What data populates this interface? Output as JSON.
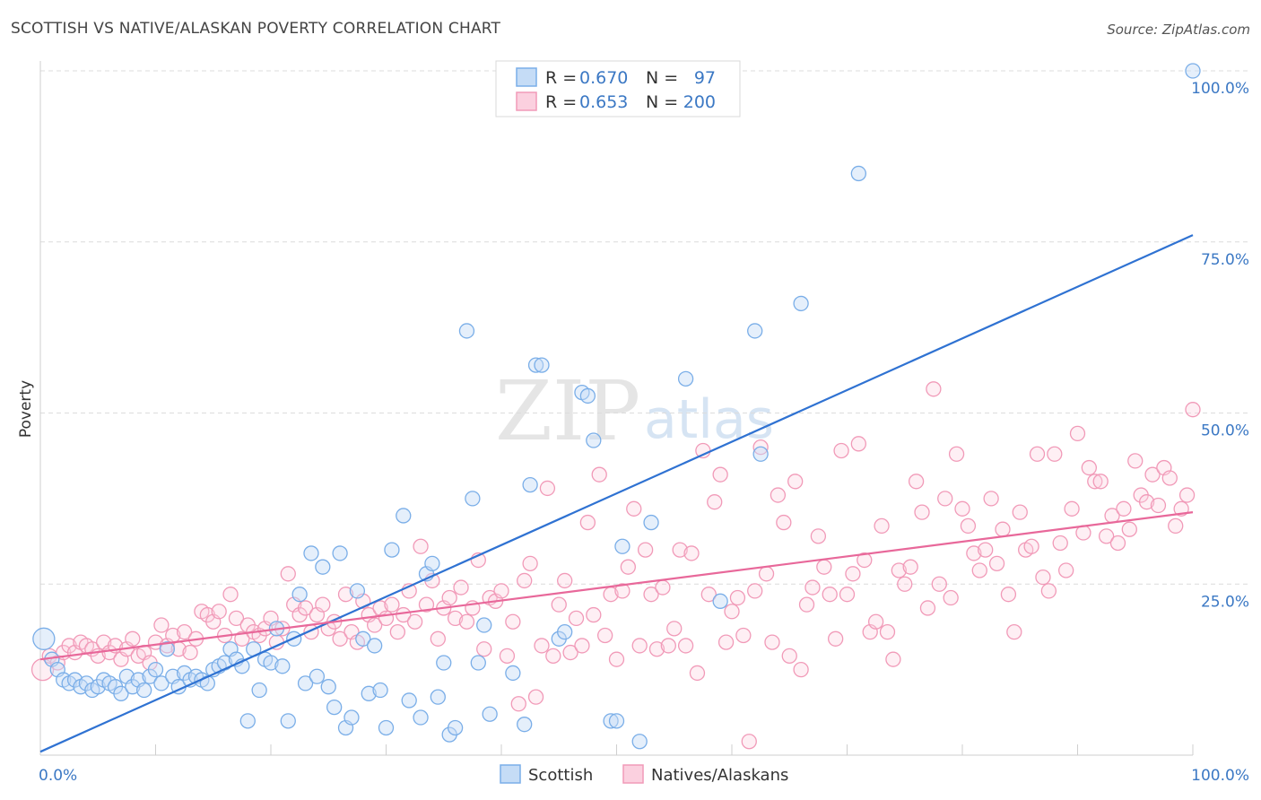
{
  "header": {
    "title": "SCOTTISH VS NATIVE/ALASKAN POVERTY CORRELATION CHART",
    "source": "Source: ZipAtlas.com"
  },
  "watermark": {
    "zip": "ZIP",
    "atlas": "atlas"
  },
  "legend": {
    "rows": [
      {
        "r_label": "R = ",
        "r_value": "0.670",
        "n_label": "N = ",
        "n_value": "97",
        "color": "#7aaee8"
      },
      {
        "r_label": "R = ",
        "r_value": "0.653",
        "n_label": "N = ",
        "n_value": "200",
        "color": "#f19ab8"
      }
    ]
  },
  "bottom_legend": [
    {
      "label": "Scottish",
      "color": "#7aaee8"
    },
    {
      "label": "Natives/Alaskans",
      "color": "#f19ab8"
    }
  ],
  "chart_data": {
    "type": "scatter",
    "title": "SCOTTISH VS NATIVE/ALASKAN POVERTY CORRELATION CHART",
    "xlabel": "",
    "ylabel": "Poverty",
    "xlim": [
      0,
      100
    ],
    "ylim": [
      0,
      100
    ],
    "x_tick_labels": [
      "0.0%",
      "100.0%"
    ],
    "y_tick_labels": [
      "25.0%",
      "50.0%",
      "75.0%",
      "100.0%"
    ],
    "y_ticks": [
      25,
      50,
      75,
      100
    ],
    "grid": true,
    "series": [
      {
        "name": "Scottish",
        "color": "#7aaee8",
        "line_color": "#2f72d2",
        "trend": {
          "x": [
            0,
            100
          ],
          "y": [
            0.5,
            76
          ]
        },
        "points": [
          [
            0.3,
            17.0
          ],
          [
            1.0,
            14.0
          ],
          [
            1.5,
            12.5
          ],
          [
            2.0,
            11.0
          ],
          [
            2.5,
            10.5
          ],
          [
            3.0,
            11.0
          ],
          [
            3.5,
            10.0
          ],
          [
            4.0,
            10.5
          ],
          [
            4.5,
            9.5
          ],
          [
            5.0,
            10.0
          ],
          [
            5.5,
            11.0
          ],
          [
            6.0,
            10.5
          ],
          [
            6.5,
            10.0
          ],
          [
            7.0,
            9.0
          ],
          [
            7.5,
            11.5
          ],
          [
            8.0,
            10.0
          ],
          [
            8.5,
            11.0
          ],
          [
            9.0,
            9.5
          ],
          [
            9.5,
            11.5
          ],
          [
            10.0,
            12.5
          ],
          [
            10.5,
            10.5
          ],
          [
            11.0,
            15.5
          ],
          [
            11.5,
            11.5
          ],
          [
            12.0,
            10.0
          ],
          [
            12.5,
            12.0
          ],
          [
            13.0,
            11.0
          ],
          [
            13.5,
            11.5
          ],
          [
            14.0,
            11.0
          ],
          [
            14.5,
            10.5
          ],
          [
            15.0,
            12.5
          ],
          [
            15.5,
            13.0
          ],
          [
            16.0,
            13.5
          ],
          [
            16.5,
            15.5
          ],
          [
            17.0,
            14.0
          ],
          [
            17.5,
            13.0
          ],
          [
            18.0,
            5.0
          ],
          [
            18.5,
            15.5
          ],
          [
            19.0,
            9.5
          ],
          [
            19.5,
            14.0
          ],
          [
            20.0,
            13.5
          ],
          [
            20.5,
            18.5
          ],
          [
            21.0,
            13.0
          ],
          [
            21.5,
            5.0
          ],
          [
            22.0,
            17.0
          ],
          [
            22.5,
            23.5
          ],
          [
            23.0,
            10.5
          ],
          [
            23.5,
            29.5
          ],
          [
            24.0,
            11.5
          ],
          [
            24.5,
            27.5
          ],
          [
            25.0,
            10.0
          ],
          [
            25.5,
            7.0
          ],
          [
            26.0,
            29.5
          ],
          [
            26.5,
            4.0
          ],
          [
            27.0,
            5.5
          ],
          [
            27.5,
            24.0
          ],
          [
            28.0,
            17.0
          ],
          [
            28.5,
            9.0
          ],
          [
            29.0,
            16.0
          ],
          [
            29.5,
            9.5
          ],
          [
            30.0,
            4.0
          ],
          [
            30.5,
            30.0
          ],
          [
            31.5,
            35.0
          ],
          [
            32.0,
            8.0
          ],
          [
            33.0,
            5.5
          ],
          [
            33.5,
            26.5
          ],
          [
            34.0,
            28.0
          ],
          [
            34.5,
            8.5
          ],
          [
            35.0,
            13.5
          ],
          [
            35.5,
            3.0
          ],
          [
            36.0,
            4.0
          ],
          [
            37.0,
            62.0
          ],
          [
            37.5,
            37.5
          ],
          [
            38.0,
            13.5
          ],
          [
            38.5,
            19.0
          ],
          [
            39.0,
            6.0
          ],
          [
            41.0,
            12.0
          ],
          [
            42.0,
            4.5
          ],
          [
            42.5,
            39.5
          ],
          [
            43.0,
            57.0
          ],
          [
            43.5,
            57.0
          ],
          [
            45.0,
            17.0
          ],
          [
            45.5,
            18.0
          ],
          [
            47.0,
            53.0
          ],
          [
            47.5,
            52.5
          ],
          [
            49.5,
            5.0
          ],
          [
            50.0,
            5.0
          ],
          [
            50.5,
            30.5
          ],
          [
            52.0,
            2.0
          ],
          [
            53.0,
            34.0
          ],
          [
            56.0,
            55.0
          ],
          [
            59.0,
            22.5
          ],
          [
            62.0,
            62.0
          ],
          [
            66.0,
            66.0
          ],
          [
            71.0,
            85.0
          ],
          [
            100.0,
            100.0
          ],
          [
            62.5,
            44.0
          ],
          [
            48.0,
            46.0
          ]
        ]
      },
      {
        "name": "Natives/Alaskans",
        "color": "#f19ab8",
        "line_color": "#e8689a",
        "trend": {
          "x": [
            0,
            100
          ],
          "y": [
            14,
            35.5
          ]
        },
        "points": [
          [
            0.2,
            12.5
          ],
          [
            0.8,
            14.5
          ],
          [
            1.5,
            13.5
          ],
          [
            2.0,
            15.0
          ],
          [
            2.5,
            16.0
          ],
          [
            3.0,
            15.0
          ],
          [
            3.5,
            16.5
          ],
          [
            4.0,
            16.0
          ],
          [
            4.5,
            15.5
          ],
          [
            5.0,
            14.5
          ],
          [
            5.5,
            16.5
          ],
          [
            6.0,
            15.0
          ],
          [
            6.5,
            16.0
          ],
          [
            7.0,
            14.0
          ],
          [
            7.5,
            15.5
          ],
          [
            8.0,
            17.0
          ],
          [
            8.5,
            14.5
          ],
          [
            9.0,
            15.0
          ],
          [
            9.5,
            13.5
          ],
          [
            10.0,
            16.5
          ],
          [
            10.5,
            19.0
          ],
          [
            11.0,
            16.0
          ],
          [
            11.5,
            17.5
          ],
          [
            12.0,
            15.5
          ],
          [
            12.5,
            18.0
          ],
          [
            13.0,
            15.0
          ],
          [
            13.5,
            17.0
          ],
          [
            14.0,
            21.0
          ],
          [
            14.5,
            20.5
          ],
          [
            15.0,
            19.5
          ],
          [
            15.5,
            21.0
          ],
          [
            16.0,
            17.5
          ],
          [
            16.5,
            23.5
          ],
          [
            17.0,
            20.0
          ],
          [
            17.5,
            17.0
          ],
          [
            18.0,
            19.0
          ],
          [
            18.5,
            18.0
          ],
          [
            19.0,
            17.5
          ],
          [
            19.5,
            18.5
          ],
          [
            20.0,
            20.0
          ],
          [
            20.5,
            16.5
          ],
          [
            21.0,
            18.5
          ],
          [
            21.5,
            26.5
          ],
          [
            22.0,
            22.0
          ],
          [
            22.5,
            20.5
          ],
          [
            23.0,
            21.5
          ],
          [
            23.5,
            18.0
          ],
          [
            24.0,
            20.5
          ],
          [
            24.5,
            22.0
          ],
          [
            25.0,
            18.5
          ],
          [
            25.5,
            19.5
          ],
          [
            26.0,
            17.0
          ],
          [
            26.5,
            23.5
          ],
          [
            27.0,
            18.0
          ],
          [
            27.5,
            16.5
          ],
          [
            28.0,
            22.5
          ],
          [
            28.5,
            20.5
          ],
          [
            29.0,
            19.0
          ],
          [
            29.5,
            21.5
          ],
          [
            30.0,
            20.0
          ],
          [
            30.5,
            22.0
          ],
          [
            31.0,
            18.0
          ],
          [
            31.5,
            20.5
          ],
          [
            32.0,
            24.0
          ],
          [
            32.5,
            19.5
          ],
          [
            33.0,
            30.5
          ],
          [
            33.5,
            22.0
          ],
          [
            34.0,
            25.5
          ],
          [
            34.5,
            17.0
          ],
          [
            35.0,
            21.5
          ],
          [
            35.5,
            23.0
          ],
          [
            36.0,
            20.0
          ],
          [
            36.5,
            24.5
          ],
          [
            37.0,
            19.5
          ],
          [
            37.5,
            21.5
          ],
          [
            38.0,
            28.5
          ],
          [
            38.5,
            15.5
          ],
          [
            39.0,
            23.0
          ],
          [
            39.5,
            22.5
          ],
          [
            40.0,
            24.0
          ],
          [
            40.5,
            14.5
          ],
          [
            41.0,
            19.5
          ],
          [
            41.5,
            7.5
          ],
          [
            42.0,
            25.5
          ],
          [
            42.5,
            28.0
          ],
          [
            43.0,
            8.5
          ],
          [
            43.5,
            16.0
          ],
          [
            44.0,
            39.0
          ],
          [
            44.5,
            14.5
          ],
          [
            45.0,
            22.0
          ],
          [
            45.5,
            25.5
          ],
          [
            46.0,
            15.0
          ],
          [
            46.5,
            20.0
          ],
          [
            47.0,
            16.0
          ],
          [
            47.5,
            34.0
          ],
          [
            48.0,
            20.5
          ],
          [
            48.5,
            41.0
          ],
          [
            49.0,
            17.5
          ],
          [
            49.5,
            23.5
          ],
          [
            50.0,
            14.0
          ],
          [
            50.5,
            24.0
          ],
          [
            51.0,
            27.5
          ],
          [
            51.5,
            36.0
          ],
          [
            52.0,
            16.0
          ],
          [
            52.5,
            30.0
          ],
          [
            53.0,
            23.5
          ],
          [
            53.5,
            15.5
          ],
          [
            54.0,
            24.5
          ],
          [
            54.5,
            16.0
          ],
          [
            55.0,
            18.5
          ],
          [
            55.5,
            30.0
          ],
          [
            56.0,
            16.0
          ],
          [
            56.5,
            29.5
          ],
          [
            57.0,
            12.0
          ],
          [
            57.5,
            44.5
          ],
          [
            58.0,
            23.5
          ],
          [
            58.5,
            37.0
          ],
          [
            59.0,
            41.0
          ],
          [
            59.5,
            16.5
          ],
          [
            60.0,
            21.0
          ],
          [
            60.5,
            23.0
          ],
          [
            61.0,
            17.5
          ],
          [
            61.5,
            2.0
          ],
          [
            62.0,
            24.0
          ],
          [
            62.5,
            45.0
          ],
          [
            63.0,
            26.5
          ],
          [
            63.5,
            16.5
          ],
          [
            64.0,
            38.0
          ],
          [
            64.5,
            34.0
          ],
          [
            65.0,
            14.5
          ],
          [
            65.5,
            40.0
          ],
          [
            66.0,
            12.5
          ],
          [
            66.5,
            22.0
          ],
          [
            67.0,
            24.5
          ],
          [
            67.5,
            32.0
          ],
          [
            68.0,
            27.5
          ],
          [
            68.5,
            23.5
          ],
          [
            69.0,
            17.0
          ],
          [
            69.5,
            44.5
          ],
          [
            70.0,
            23.5
          ],
          [
            70.5,
            26.5
          ],
          [
            71.0,
            45.5
          ],
          [
            71.5,
            28.5
          ],
          [
            72.0,
            18.0
          ],
          [
            72.5,
            19.5
          ],
          [
            73.0,
            33.5
          ],
          [
            73.5,
            18.0
          ],
          [
            74.0,
            14.0
          ],
          [
            74.5,
            27.0
          ],
          [
            75.0,
            25.0
          ],
          [
            75.5,
            27.5
          ],
          [
            76.0,
            40.0
          ],
          [
            76.5,
            35.5
          ],
          [
            77.0,
            21.5
          ],
          [
            77.5,
            53.5
          ],
          [
            78.0,
            25.0
          ],
          [
            78.5,
            37.5
          ],
          [
            79.0,
            23.0
          ],
          [
            79.5,
            44.0
          ],
          [
            80.0,
            36.0
          ],
          [
            80.5,
            33.5
          ],
          [
            81.0,
            29.5
          ],
          [
            81.5,
            27.0
          ],
          [
            82.0,
            30.0
          ],
          [
            82.5,
            37.5
          ],
          [
            83.0,
            28.0
          ],
          [
            83.5,
            33.0
          ],
          [
            84.0,
            23.5
          ],
          [
            84.5,
            18.0
          ],
          [
            85.0,
            35.5
          ],
          [
            85.5,
            30.0
          ],
          [
            86.0,
            30.5
          ],
          [
            86.5,
            44.0
          ],
          [
            87.0,
            26.0
          ],
          [
            87.5,
            24.0
          ],
          [
            88.0,
            44.0
          ],
          [
            88.5,
            31.0
          ],
          [
            89.0,
            27.0
          ],
          [
            89.5,
            36.0
          ],
          [
            90.0,
            47.0
          ],
          [
            90.5,
            32.5
          ],
          [
            91.0,
            42.0
          ],
          [
            91.5,
            40.0
          ],
          [
            92.0,
            40.0
          ],
          [
            92.5,
            32.0
          ],
          [
            93.0,
            35.0
          ],
          [
            93.5,
            31.0
          ],
          [
            94.0,
            36.0
          ],
          [
            94.5,
            33.0
          ],
          [
            95.0,
            43.0
          ],
          [
            95.5,
            38.0
          ],
          [
            96.0,
            37.0
          ],
          [
            96.5,
            41.0
          ],
          [
            97.0,
            36.5
          ],
          [
            97.5,
            42.0
          ],
          [
            98.0,
            40.5
          ],
          [
            98.5,
            33.5
          ],
          [
            99.0,
            36.0
          ],
          [
            99.5,
            38.0
          ],
          [
            100.0,
            50.5
          ]
        ]
      }
    ]
  }
}
